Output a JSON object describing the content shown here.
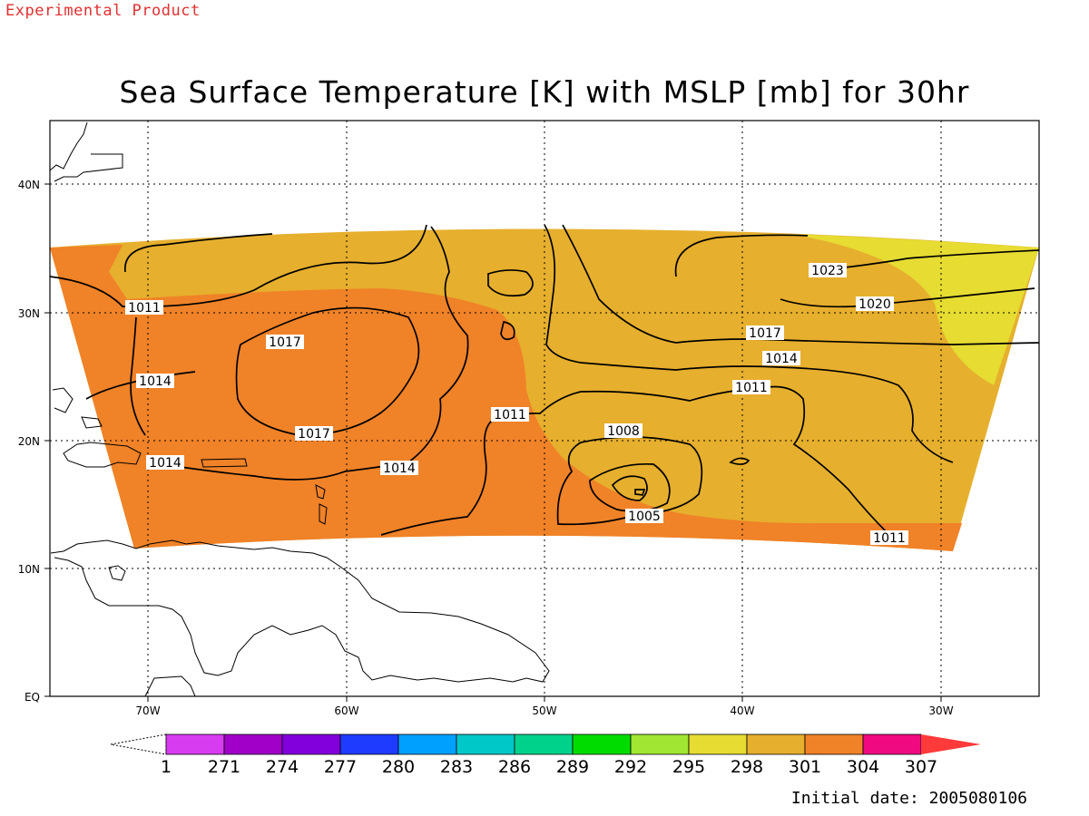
{
  "header": {
    "product_tag": "Experimental Product",
    "title": "Sea Surface Temperature [K] with MSLP [mb] for 30hr"
  },
  "footer": {
    "initial_date": "Initial date: 2005080106"
  },
  "map": {
    "lon_ticks": [
      "70W",
      "60W",
      "50W",
      "40W",
      "30W"
    ],
    "lat_ticks": [
      "EQ",
      "10N",
      "20N",
      "30N",
      "40N"
    ],
    "contour_labels": [
      "1011",
      "1017",
      "1014",
      "1017",
      "1014",
      "1011",
      "1014",
      "1008",
      "1005",
      "1011",
      "1017",
      "1014",
      "1023",
      "1020",
      "1011"
    ]
  },
  "colorbar": {
    "labels": [
      "1",
      "271",
      "274",
      "277",
      "280",
      "283",
      "286",
      "289",
      "292",
      "295",
      "298",
      "301",
      "304",
      "307"
    ],
    "colors": [
      "#d83cf0",
      "#a000c8",
      "#8200dc",
      "#1e3cff",
      "#00a0ff",
      "#00c8c8",
      "#00d28c",
      "#00dc00",
      "#a0e632",
      "#e6dc32",
      "#e6af2d",
      "#f08228",
      "#f00a82",
      "#ff3a3a"
    ]
  },
  "colors": {
    "sst_298_301": "#e6af2d",
    "sst_295_298": "#e6dc32",
    "sst_301_304": "#f08228"
  }
}
